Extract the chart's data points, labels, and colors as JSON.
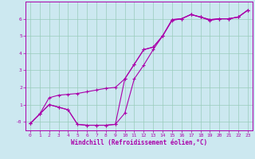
{
  "xlabel": "Windchill (Refroidissement éolien,°C)",
  "background_color": "#cce8f0",
  "grid_color": "#99ccbb",
  "line_color": "#aa00aa",
  "xlim": [
    -0.5,
    23.5
  ],
  "ylim": [
    -0.5,
    7.0
  ],
  "yticks": [
    0,
    1,
    2,
    3,
    4,
    5,
    6
  ],
  "ytick_labels": [
    "-0",
    "1",
    "2",
    "3",
    "4",
    "5",
    "6"
  ],
  "xticks": [
    0,
    1,
    2,
    3,
    4,
    5,
    6,
    7,
    8,
    9,
    10,
    11,
    12,
    13,
    14,
    15,
    16,
    17,
    18,
    19,
    20,
    21,
    22,
    23
  ],
  "series1_x": [
    0,
    1,
    2,
    3,
    4,
    5,
    6,
    7,
    8,
    9,
    10,
    11,
    12,
    13,
    14,
    15,
    16,
    17,
    18,
    19,
    20,
    21,
    22,
    23
  ],
  "series1_y": [
    -0.1,
    0.45,
    1.0,
    0.85,
    0.7,
    -0.15,
    -0.2,
    -0.2,
    -0.2,
    -0.15,
    0.5,
    2.5,
    3.3,
    4.2,
    5.0,
    5.9,
    6.0,
    6.25,
    6.1,
    5.9,
    6.0,
    6.0,
    6.1,
    6.5
  ],
  "series2_x": [
    0,
    1,
    2,
    3,
    4,
    5,
    6,
    7,
    8,
    9,
    10,
    11,
    12,
    13,
    14,
    15,
    16,
    17,
    18,
    19,
    20,
    21,
    22,
    23
  ],
  "series2_y": [
    -0.1,
    0.45,
    1.0,
    0.85,
    0.7,
    -0.15,
    -0.2,
    -0.2,
    -0.2,
    -0.15,
    2.5,
    3.35,
    4.2,
    4.35,
    5.0,
    5.95,
    6.0,
    6.25,
    6.1,
    5.95,
    6.0,
    6.0,
    6.1,
    6.5
  ],
  "series3_x": [
    0,
    1,
    2,
    3,
    4,
    5,
    6,
    7,
    8,
    9,
    10,
    11,
    12,
    13,
    14,
    15,
    16,
    17,
    18,
    19,
    20,
    21,
    22,
    23
  ],
  "series3_y": [
    -0.1,
    0.45,
    1.4,
    1.55,
    1.6,
    1.65,
    1.75,
    1.85,
    1.95,
    2.0,
    2.5,
    3.35,
    4.2,
    4.35,
    5.0,
    5.95,
    6.0,
    6.25,
    6.1,
    5.95,
    6.0,
    6.0,
    6.1,
    6.5
  ],
  "marker_size": 2.5,
  "line_width": 0.8,
  "tick_fontsize": 4.5,
  "xlabel_fontsize": 5.5
}
